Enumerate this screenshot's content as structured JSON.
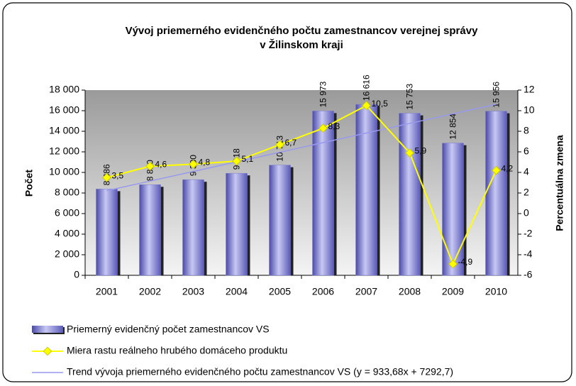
{
  "chart_data": {
    "type": "bar",
    "title": [
      "Vývoj priemerného evidenčného počtu zamestnancov verejnej správy",
      "v Žilinskom kraji"
    ],
    "y_label": "Počet",
    "y2_label": "Percentuálna zmena",
    "categories": [
      "2001",
      "2002",
      "2003",
      "2004",
      "2005",
      "2006",
      "2007",
      "2008",
      "2009",
      "2010"
    ],
    "series": [
      {
        "name": "Priemerný evidenčný počet zamestnancov VS",
        "type": "bar",
        "color": "#7b7bd6",
        "values": [
          8386,
          8810,
          9300,
          9918,
          10713,
          15973,
          16616,
          15753,
          12854,
          15956
        ],
        "value_labels": [
          "8 386",
          "8 810",
          "9 300",
          "9 918",
          "10 713",
          "15 973",
          "16 616",
          "15 753",
          "12 854",
          "15 956"
        ]
      },
      {
        "name": "Miera rastu reálneho hrubého domáceho produktu",
        "type": "line",
        "axis": "y2",
        "color": "#ffff00",
        "values": [
          3.5,
          4.6,
          4.8,
          5.1,
          6.7,
          8.3,
          10.5,
          5.9,
          -4.9,
          4.2
        ],
        "value_labels": [
          "3,5",
          "4,6",
          "4,8",
          "5,1",
          "6,7",
          "8,3",
          "10,5",
          "5,9",
          "-4,9",
          "4,2"
        ]
      },
      {
        "name": "Trend vývoja priemerného evidenčného počtu zamestnancov VS  (y = 933,68x + 7292,7)",
        "type": "line",
        "color": "#9999ee",
        "values": [
          8226.38,
          9160.06,
          10093.74,
          11027.42,
          11961.1,
          12894.78,
          13828.46,
          14762.14,
          15695.82,
          16629.5
        ]
      }
    ],
    "ylim": [
      0,
      18000
    ],
    "yticks": [
      0,
      {
        "value": 2000,
        "label": "2 000"
      },
      {
        "value": 4000,
        "label": "4 000"
      },
      {
        "value": 6000,
        "label": "6 000"
      },
      {
        "value": 8000,
        "label": "8 000"
      },
      {
        "value": 10000,
        "label": "10 000"
      },
      {
        "value": 12000,
        "label": "12 000"
      },
      {
        "value": 14000,
        "label": "14 000"
      },
      {
        "value": 16000,
        "label": "16 000"
      },
      {
        "value": 18000,
        "label": "18 000"
      }
    ],
    "y2lim": [
      -6,
      12
    ],
    "y2ticks": [
      -6,
      -4,
      -2,
      0,
      2,
      4,
      6,
      8,
      10,
      12
    ],
    "legend": "bottom"
  }
}
